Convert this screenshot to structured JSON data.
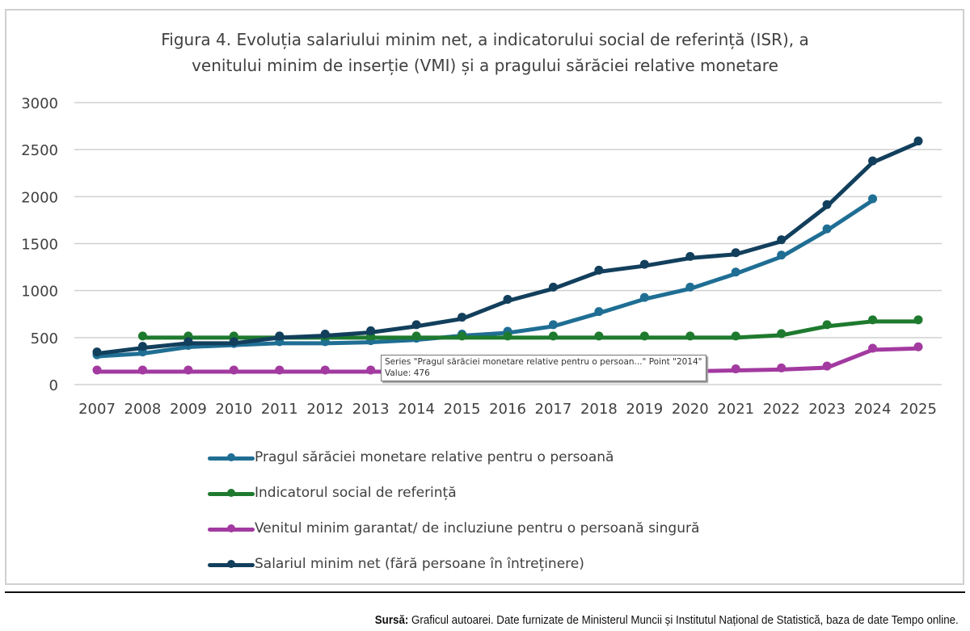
{
  "chart_data": {
    "type": "line",
    "title_lines": [
      "Figura 4. Evoluția salariului minim net, a indicatorului social de referință (ISR), a",
      "venitului minim de inserție (VMI) și a pragului sărăciei relative monetare"
    ],
    "xlabel": "",
    "ylabel": "",
    "x": [
      "2007",
      "2008",
      "2009",
      "2010",
      "2011",
      "2012",
      "2013",
      "2014",
      "2015",
      "2016",
      "2017",
      "2018",
      "2019",
      "2020",
      "2021",
      "2022",
      "2023",
      "2024",
      "2025"
    ],
    "ylim": [
      0,
      3000
    ],
    "yticks": [
      0,
      500,
      1000,
      1500,
      2000,
      2500,
      3000
    ],
    "grid": true,
    "legend_position": "bottom",
    "series": [
      {
        "name": "Pragul sărăciei monetare relative pentru o persoană",
        "color": "#1F6E94",
        "values": [
          300,
          330,
          400,
          420,
          440,
          440,
          450,
          476,
          520,
          550,
          620,
          760,
          910,
          1020,
          1180,
          1360,
          1640,
          1960,
          null
        ]
      },
      {
        "name": "Indicatorul social de referință",
        "color": "#1E7A2E",
        "values": [
          null,
          500,
          500,
          500,
          500,
          500,
          500,
          500,
          500,
          500,
          500,
          500,
          500,
          500,
          500,
          525,
          620,
          672,
          672
        ]
      },
      {
        "name": "Venitul minim garantat/ de incluziune pentru o persoană singură",
        "color": "#A23AA0",
        "values": [
          138,
          138,
          138,
          138,
          138,
          138,
          138,
          138,
          138,
          138,
          138,
          138,
          138,
          142,
          150,
          160,
          180,
          370,
          385
        ]
      },
      {
        "name": "Salariul minim net (fără persoane în întreținere)",
        "color": "#123F5C",
        "values": [
          330,
          390,
          440,
          440,
          500,
          520,
          555,
          620,
          700,
          890,
          1020,
          1200,
          1263,
          1346,
          1386,
          1524,
          1898,
          2363,
          2574
        ]
      }
    ],
    "tooltip": {
      "line1": "Series \"Pragul sărăciei monetare relative pentru o persoan...\" Point \"2014\"",
      "line2": "Value: 476"
    }
  },
  "source": {
    "label": "Sursă:",
    "text": " Graficul autoarei. Date furnizate de Ministerul Muncii și Institutul Național de Statistică, baza de date Tempo online."
  }
}
